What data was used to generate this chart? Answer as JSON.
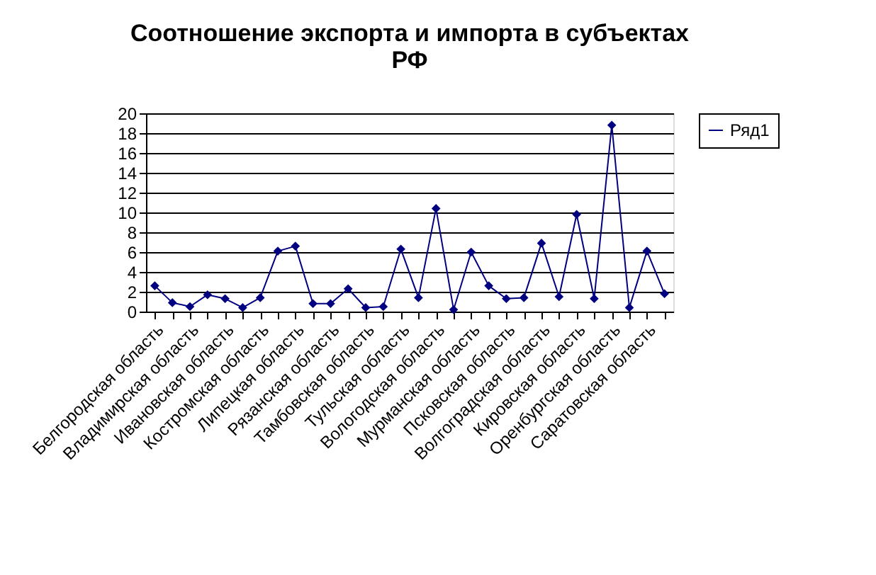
{
  "chart_data": {
    "type": "line",
    "title": "Соотношение экспорта и импорта в субъектах РФ",
    "categories": [
      "Белгородская область",
      null,
      "Владимирская область",
      null,
      "Ивановская область",
      null,
      "Костромская область",
      null,
      "Липецкая область",
      null,
      "Рязанская область",
      null,
      "Тамбовская область",
      null,
      "Тульская область",
      null,
      "Вологодская область",
      null,
      "Мурманская область",
      null,
      "Псковская область",
      null,
      "Волгоградская область",
      null,
      "Кировская область",
      null,
      "Оренбургская область",
      null,
      "Саратовская область",
      null
    ],
    "series": [
      {
        "name": "Ряд1",
        "color": "#000080",
        "values": [
          2.6,
          0.9,
          0.5,
          1.7,
          1.3,
          0.4,
          1.4,
          6.1,
          6.6,
          0.8,
          0.8,
          2.3,
          0.4,
          0.5,
          6.3,
          1.4,
          10.4,
          0.2,
          6.0,
          2.6,
          1.3,
          1.4,
          6.9,
          1.5,
          9.8,
          1.3,
          18.8,
          0.4,
          6.1,
          1.8
        ]
      }
    ],
    "ylim": [
      0,
      20
    ],
    "yticks": [
      0,
      2,
      4,
      6,
      8,
      10,
      12,
      14,
      16,
      18,
      20
    ],
    "grid": "y",
    "legend": "right",
    "marker": "diamond",
    "line_style": "solid"
  }
}
